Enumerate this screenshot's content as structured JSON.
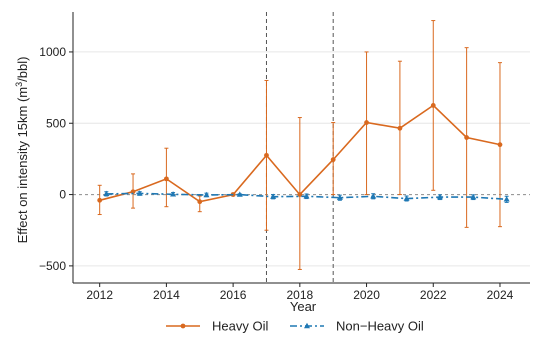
{
  "chart_data": {
    "type": "line",
    "title": "",
    "xlabel": "Year",
    "ylabel_main": "Effect on intensity 15km (m",
    "ylabel_sup": "3",
    "ylabel_tail": "/bbl)",
    "xlim": [
      2011.2,
      2024.9
    ],
    "ylim": [
      -620,
      1280
    ],
    "x_ticks": [
      2012,
      2014,
      2016,
      2018,
      2020,
      2022,
      2024
    ],
    "x_tick_labels": [
      "2012",
      "2014",
      "2016",
      "2018",
      "2020",
      "2022",
      "2024"
    ],
    "y_ticks": [
      -500,
      0,
      500,
      1000
    ],
    "y_tick_labels": [
      "−500",
      "0",
      "500",
      "1000"
    ],
    "reference_line_y": 0,
    "vertical_lines_x": [
      2017,
      2019
    ],
    "grid": "horizontal",
    "legend_position": "bottom",
    "series": [
      {
        "name": "Heavy Oil",
        "color": "#D9691F",
        "marker": "circle",
        "line_style": "solid",
        "x": [
          2012,
          2013,
          2014,
          2015,
          2016,
          2017,
          2018,
          2019,
          2020,
          2021,
          2022,
          2023,
          2024
        ],
        "y": [
          -40,
          20,
          110,
          -50,
          0,
          275,
          0,
          245,
          505,
          465,
          625,
          400,
          350
        ],
        "ci_low": [
          -140,
          -95,
          -85,
          -120,
          -10,
          -250,
          -525,
          0,
          0,
          0,
          30,
          -230,
          -225
        ],
        "ci_high": [
          65,
          145,
          325,
          -10,
          10,
          800,
          540,
          505,
          1000,
          935,
          1220,
          1030,
          925
        ]
      },
      {
        "name": "Non−Heavy Oil",
        "color": "#1F78B4",
        "marker": "triangle",
        "line_style": "dashdot",
        "x": [
          2012.2,
          2013.2,
          2014.2,
          2015.2,
          2016.2,
          2017.2,
          2018.2,
          2019.2,
          2020.2,
          2021.2,
          2022.2,
          2023.2,
          2024.2
        ],
        "y": [
          5,
          8,
          2,
          -3,
          0,
          -15,
          -12,
          -22,
          -12,
          -28,
          -18,
          -18,
          -33
        ],
        "ci_low": [
          -10,
          -5,
          -10,
          -15,
          -5,
          -30,
          -28,
          -40,
          -30,
          -45,
          -35,
          -35,
          -55
        ],
        "ci_high": [
          20,
          20,
          14,
          10,
          5,
          0,
          4,
          -4,
          6,
          -10,
          -2,
          -2,
          -12
        ]
      }
    ]
  }
}
